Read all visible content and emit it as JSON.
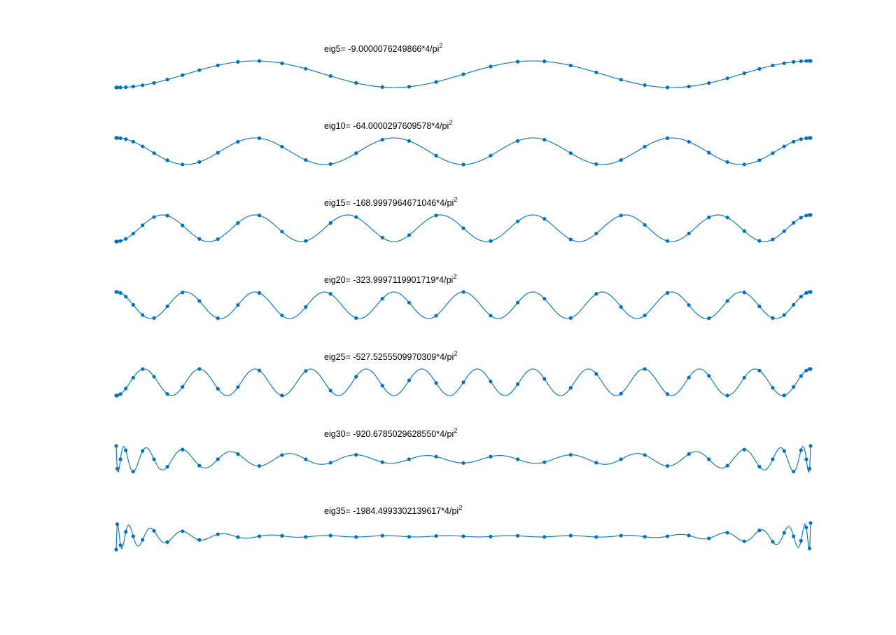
{
  "chart_data": [
    {
      "type": "line",
      "title": "eig5=   -9.0000076249866*4/pi",
      "title_superscript": "2",
      "mode_number": 5,
      "amplitude": 1.0,
      "envelope": "uniform",
      "marker_style": "filled-circle",
      "xlim": [
        -1,
        1
      ],
      "ylim": [
        -1,
        1
      ],
      "axes_visible": false,
      "grid": false
    },
    {
      "type": "line",
      "title": "eig10=   -64.0000297609578*4/pi",
      "title_superscript": "2",
      "mode_number": 10,
      "amplitude": 1.0,
      "envelope": "uniform",
      "marker_style": "filled-circle",
      "xlim": [
        -1,
        1
      ],
      "ylim": [
        -1,
        1
      ],
      "axes_visible": false,
      "grid": false
    },
    {
      "type": "line",
      "title": "eig15=  -168.9997964671046*4/pi",
      "title_superscript": "2",
      "mode_number": 15,
      "amplitude": 1.0,
      "envelope": "uniform",
      "marker_style": "filled-circle",
      "xlim": [
        -1,
        1
      ],
      "ylim": [
        -1,
        1
      ],
      "axes_visible": false,
      "grid": false
    },
    {
      "type": "line",
      "title": "eig20=  -323.9997119901719*4/pi",
      "title_superscript": "2",
      "mode_number": 20,
      "amplitude": 1.0,
      "envelope": "uniform",
      "marker_style": "filled-circle",
      "xlim": [
        -1,
        1
      ],
      "ylim": [
        -1,
        1
      ],
      "axes_visible": false,
      "grid": false
    },
    {
      "type": "line",
      "title": "eig25=  -527.5255509970309*4/pi",
      "title_superscript": "2",
      "mode_number": 25,
      "amplitude": 1.0,
      "envelope": "uniform",
      "marker_style": "filled-circle",
      "xlim": [
        -1,
        1
      ],
      "ylim": [
        -1,
        1
      ],
      "axes_visible": false,
      "grid": false
    },
    {
      "type": "line",
      "title": "eig30=  -920.6785029628550*4/pi",
      "title_superscript": "2",
      "mode_number": 30,
      "amplitude": 1.0,
      "envelope": "edge-heavy",
      "marker_style": "filled-circle",
      "xlim": [
        -1,
        1
      ],
      "ylim": [
        -1,
        1
      ],
      "axes_visible": false,
      "grid": false
    },
    {
      "type": "line",
      "title": "eig35= -1984.4993302139617*4/pi",
      "title_superscript": "2",
      "mode_number": 35,
      "amplitude": 1.0,
      "envelope": "edge-localized",
      "marker_style": "filled-circle",
      "xlim": [
        -1,
        1
      ],
      "ylim": [
        -1,
        1
      ],
      "axes_visible": false,
      "grid": false
    }
  ],
  "style": {
    "line_color": "#0072BD",
    "marker_color": "#0072BD",
    "background": "#ffffff",
    "title_color": "#000000"
  },
  "sample_points": 41
}
